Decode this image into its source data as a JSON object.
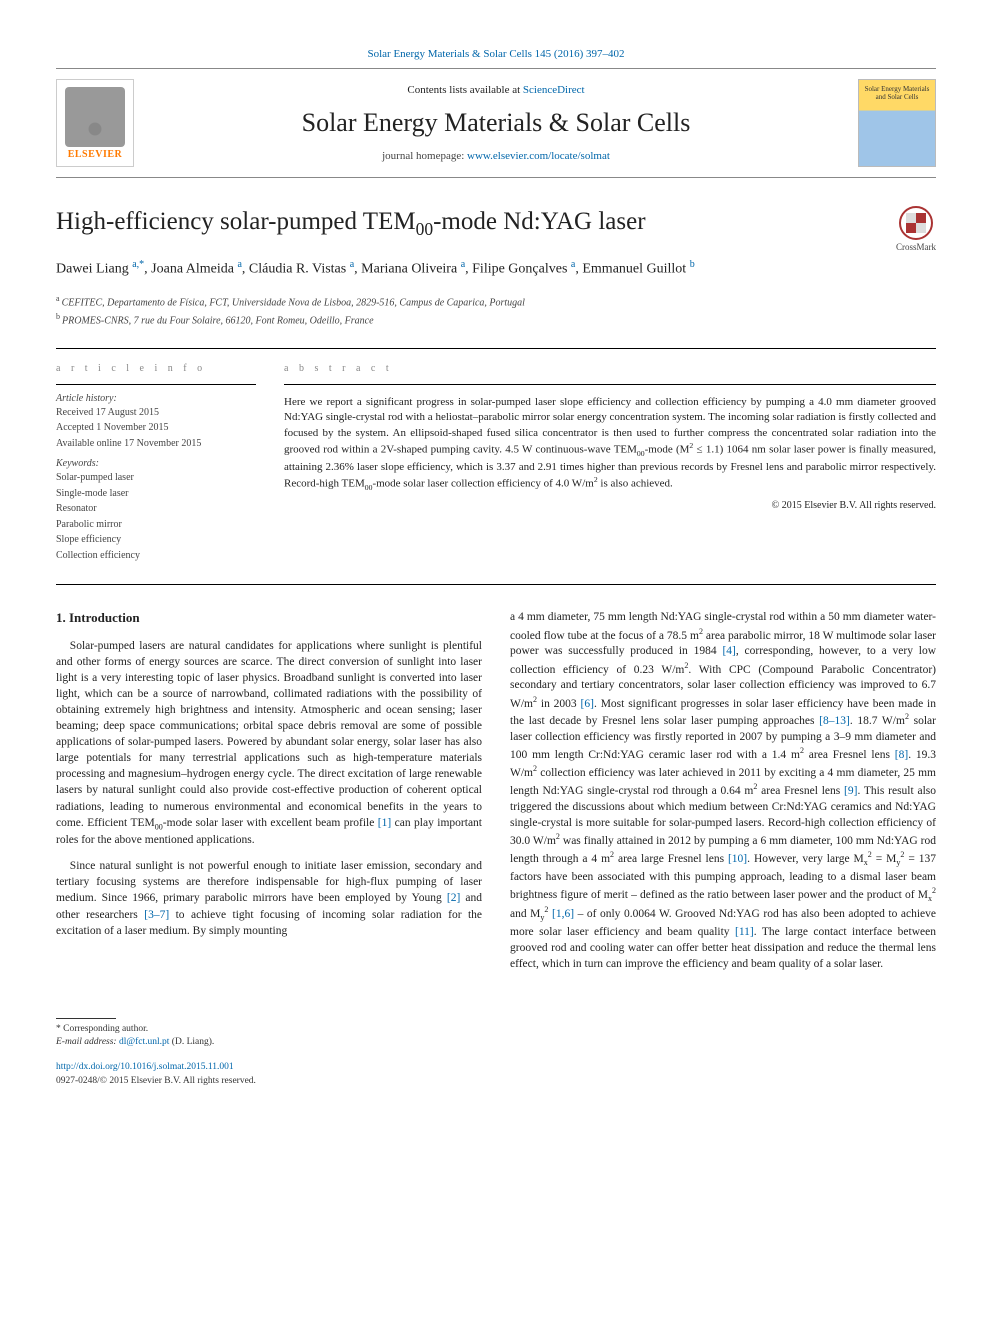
{
  "citation": "Solar Energy Materials & Solar Cells 145 (2016) 397–402",
  "masthead": {
    "contents_prefix": "Contents lists available at ",
    "contents_link": "ScienceDirect",
    "journal_name": "Solar Energy Materials & Solar Cells",
    "homepage_prefix": "journal homepage: ",
    "homepage_url": "www.elsevier.com/locate/solmat",
    "publisher_name": "ELSEVIER",
    "cover_text": "Solar Energy Materials and Solar Cells",
    "colors": {
      "link": "#0066aa",
      "elsevier": "#ff7a00"
    }
  },
  "crossmark_label": "CrossMark",
  "article": {
    "title_html": "High-efficiency solar-pumped TEM<sub>00</sub>-mode Nd:YAG laser",
    "authors_html": "Dawei Liang <span class='aff'>a,*</span>, Joana Almeida <span class='aff'>a</span>, Cláudia R. Vistas <span class='aff'>a</span>, Mariana Oliveira <span class='aff'>a</span>, Filipe Gonçalves <span class='aff'>a</span>, Emmanuel Guillot <span class='aff'>b</span>",
    "affiliations": [
      {
        "marker": "a",
        "text": "CEFITEC, Departamento de Física, FCT, Universidade Nova de Lisboa, 2829-516, Campus de Caparica, Portugal"
      },
      {
        "marker": "b",
        "text": "PROMES-CNRS, 7 rue du Four Solaire, 66120, Font Romeu, Odeillo, France"
      }
    ]
  },
  "info_heading": "a r t i c l e   i n f o",
  "abstract_heading": "A B S T R A C T",
  "history_label": "Article history:",
  "history": [
    "Received 17 August 2015",
    "Accepted 1 November 2015",
    "Available online 17 November 2015"
  ],
  "keywords_label": "Keywords:",
  "keywords": [
    "Solar-pumped laser",
    "Single-mode laser",
    "Resonator",
    "Parabolic mirror",
    "Slope efficiency",
    "Collection efficiency"
  ],
  "abstract_html": "Here we report a significant progress in solar-pumped laser slope efficiency and collection efficiency by pumping a 4.0 mm diameter grooved Nd:YAG single-crystal rod with a heliostat–parabolic mirror solar energy concentration system. The incoming solar radiation is firstly collected and focused by the system. An ellipsoid-shaped fused silica concentrator is then used to further compress the concentrated solar radiation into the grooved rod within a 2V-shaped pumping cavity. 4.5 W continuous-wave TEM<sub>00</sub>-mode (M<sup>2</sup> ≤ 1.1) 1064 nm solar laser power is finally measured, attaining 2.36% laser slope efficiency, which is 3.37 and 2.91 times higher than previous records by Fresnel lens and parabolic mirror respectively. Record-high TEM<sub>00</sub>-mode solar laser collection efficiency of 4.0 W/m<sup>2</sup> is also achieved.",
  "copyright_line": "© 2015 Elsevier B.V. All rights reserved.",
  "section1_heading": "1.  Introduction",
  "para1_html": "Solar-pumped lasers are natural candidates for applications where sunlight is plentiful and other forms of energy sources are scarce. The direct conversion of sunlight into laser light is a very interesting topic of laser physics. Broadband sunlight is converted into laser light, which can be a source of narrowband, collimated radiations with the possibility of obtaining extremely high brightness and intensity. Atmospheric and ocean sensing; laser beaming; deep space communications; orbital space debris removal are some of possible applications of solar-pumped lasers. Powered by abundant solar energy, solar laser has also large potentials for many terrestrial applications such as high-temperature materials processing and magnesium–hydrogen energy cycle. The direct excitation of large renewable lasers by natural sunlight could also provide cost-effective production of coherent optical radiations, leading to numerous environmental and economical benefits in the years to come. Efficient TEM<sub>00</sub>-mode solar laser with excellent beam profile <span class='ref'>[1]</span> can play important roles for the above mentioned applications.",
  "para2_html": "Since natural sunlight is not powerful enough to initiate laser emission, secondary and tertiary focusing systems are therefore indispensable for high-flux pumping of laser medium. Since 1966, primary parabolic mirrors have been employed by Young <span class='ref'>[2]</span> and other researchers <span class='ref'>[3–7]</span> to achieve tight focusing of incoming solar radiation for the excitation of a laser medium. By simply mounting",
  "para3_html": "a 4 mm diameter, 75 mm length Nd:YAG single-crystal rod within a 50 mm diameter water-cooled flow tube at the focus of a 78.5 m<sup>2</sup> area parabolic mirror, 18 W multimode solar laser power was successfully produced in 1984 <span class='ref'>[4]</span>, corresponding, however, to a very low collection efficiency of 0.23 W/m<sup>2</sup>. With CPC (Compound Parabolic Concentrator) secondary and tertiary concentrators, solar laser collection efficiency was improved to 6.7 W/m<sup>2</sup> in 2003 <span class='ref'>[6]</span>. Most significant progresses in solar laser efficiency have been made in the last decade by Fresnel lens solar laser pumping approaches <span class='ref'>[8–13]</span>. 18.7 W/m<sup>2</sup> solar laser collection efficiency was firstly reported in 2007 by pumping a 3–9 mm diameter and 100 mm length Cr:Nd:YAG ceramic laser rod with a 1.4 m<sup>2</sup> area Fresnel lens <span class='ref'>[8]</span>. 19.3 W/m<sup>2</sup> collection efficiency was later achieved in 2011 by exciting a 4 mm diameter, 25 mm length Nd:YAG single-crystal rod through a 0.64 m<sup>2</sup> area Fresnel lens <span class='ref'>[9]</span>. This result also triggered the discussions about which medium between Cr:Nd:YAG ceramics and Nd:YAG single-crystal is more suitable for solar-pumped lasers. Record-high collection efficiency of 30.0 W/m<sup>2</sup> was finally attained in 2012 by pumping a 6 mm diameter, 100 mm Nd:YAG rod length through a 4 m<sup>2</sup> area large Fresnel lens <span class='ref'>[10]</span>. However, very large M<sub>x</sub><sup>2</sup> = M<sub>y</sub><sup>2</sup> = 137 factors have been associated with this pumping approach, leading to a dismal laser beam brightness figure of merit – defined as the ratio between laser power and the product of M<sub>x</sub><sup>2</sup> and M<sub>y</sub><sup>2</sup> <span class='ref'>[1,6]</span> – of only 0.0064 W. Grooved Nd:YAG rod has also been adopted to achieve more solar laser efficiency and beam quality <span class='ref'>[11]</span>. The large contact interface between grooved rod and cooling water can offer better heat dissipation and reduce the thermal lens effect, which in turn can improve the efficiency and beam quality of a solar laser.",
  "footer": {
    "corr": "* Corresponding author.",
    "email_label": "E-mail address: ",
    "email": "dl@fct.unl.pt",
    "email_suffix": " (D. Liang).",
    "doi": "http://dx.doi.org/10.1016/j.solmat.2015.11.001",
    "issn_line": "0927-0248/© 2015 Elsevier B.V. All rights reserved."
  }
}
